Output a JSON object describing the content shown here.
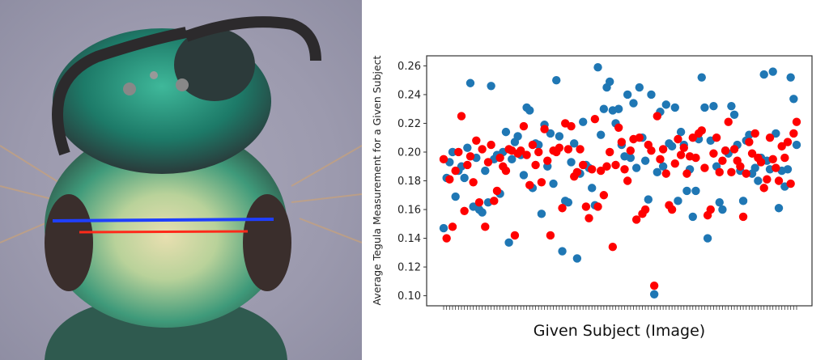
{
  "photo": {
    "description_icon": "bee-specimen-photo",
    "line_colors": {
      "blue": "#1f3fff",
      "red": "#ff2a1a"
    }
  },
  "chart_data": {
    "type": "scatter",
    "title": "",
    "xlabel": "Given Subject (Image)",
    "ylabel": "Average Tegula Measurement for a Given Subject",
    "ylim": [
      0.093,
      0.267
    ],
    "yticks": [
      "0.10",
      "0.12",
      "0.14",
      "0.16",
      "0.18",
      "0.20",
      "0.22",
      "0.24",
      "0.26"
    ],
    "grid": false,
    "legend": "none",
    "series": [
      {
        "name": "blue",
        "color": "#1f77b4",
        "values": [
          0.147,
          0.182,
          0.193,
          0.2,
          0.169,
          0.187,
          0.19,
          0.182,
          0.203,
          0.248,
          0.162,
          0.196,
          0.16,
          0.158,
          0.187,
          0.165,
          0.246,
          0.195,
          0.198,
          0.171,
          0.2,
          0.214,
          0.137,
          0.195,
          0.207,
          0.211,
          0.198,
          0.184,
          0.231,
          0.229,
          0.175,
          0.206,
          0.205,
          0.157,
          0.219,
          0.19,
          0.213,
          0.178,
          0.25,
          0.211,
          0.131,
          0.166,
          0.165,
          0.193,
          0.206,
          0.126,
          0.185,
          0.221,
          0.191,
          0.189,
          0.175,
          0.163,
          0.259,
          0.212,
          0.23,
          0.245,
          0.249,
          0.229,
          0.22,
          0.23,
          0.205,
          0.197,
          0.24,
          0.196,
          0.234,
          0.189,
          0.245,
          0.21,
          0.194,
          0.167,
          0.24,
          0.101,
          0.186,
          0.228,
          0.19,
          0.233,
          0.206,
          0.204,
          0.231,
          0.166,
          0.214,
          0.205,
          0.173,
          0.188,
          0.155,
          0.173,
          0.209,
          0.252,
          0.231,
          0.14,
          0.208,
          0.232,
          0.19,
          0.165,
          0.16,
          0.201,
          0.199,
          0.232,
          0.226,
          0.205,
          0.187,
          0.166,
          0.208,
          0.212,
          0.185,
          0.189,
          0.18,
          0.196,
          0.254,
          0.194,
          0.188,
          0.256,
          0.213,
          0.161,
          0.187,
          0.176,
          0.188,
          0.252,
          0.237,
          0.205
        ]
      },
      {
        "name": "red",
        "color": "#ff0000",
        "values": [
          0.195,
          0.14,
          0.181,
          0.148,
          0.187,
          0.2,
          0.225,
          0.159,
          0.191,
          0.197,
          0.179,
          0.208,
          0.165,
          0.202,
          0.148,
          0.193,
          0.205,
          0.166,
          0.173,
          0.196,
          0.19,
          0.187,
          0.202,
          0.201,
          0.142,
          0.199,
          0.201,
          0.218,
          0.198,
          0.177,
          0.205,
          0.191,
          0.2,
          0.179,
          0.216,
          0.194,
          0.142,
          0.201,
          0.2,
          0.203,
          0.161,
          0.22,
          0.202,
          0.218,
          0.183,
          0.186,
          0.202,
          0.191,
          0.162,
          0.154,
          0.188,
          0.223,
          0.162,
          0.187,
          0.17,
          0.19,
          0.2,
          0.134,
          0.191,
          0.217,
          0.207,
          0.188,
          0.18,
          0.201,
          0.209,
          0.153,
          0.21,
          0.157,
          0.16,
          0.205,
          0.201,
          0.107,
          0.225,
          0.195,
          0.202,
          0.185,
          0.163,
          0.16,
          0.192,
          0.209,
          0.198,
          0.203,
          0.185,
          0.197,
          0.21,
          0.196,
          0.213,
          0.215,
          0.189,
          0.156,
          0.16,
          0.199,
          0.21,
          0.186,
          0.194,
          0.201,
          0.221,
          0.186,
          0.202,
          0.194,
          0.19,
          0.155,
          0.185,
          0.207,
          0.199,
          0.213,
          0.196,
          0.193,
          0.175,
          0.181,
          0.21,
          0.195,
          0.189,
          0.18,
          0.204,
          0.196,
          0.207,
          0.178,
          0.213,
          0.221
        ]
      }
    ]
  }
}
